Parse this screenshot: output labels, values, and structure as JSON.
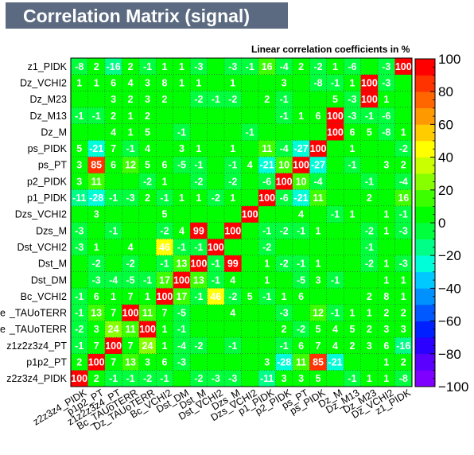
{
  "title": "Correlation Matrix (signal)",
  "subtitle": "Linear correlation coefficients in %",
  "chart_data": {
    "type": "heatmap",
    "title": "Correlation Matrix (signal)",
    "subtitle": "Linear correlation coefficients in %",
    "x_labels": [
      "z2z3z4_PIDK",
      "p1p2_PT",
      "z1z2z3z4_PT",
      "Bc_TAUoTERR",
      "Dz_TAUoTERR",
      "Bc_VCHI2",
      "Dst_DM",
      "Dst_M",
      "Dst_VCHI2",
      "Dzs_M",
      "Dzs_VCHI2",
      "p1_PIDK",
      "p2_PIDK",
      "ps_PT",
      "ps_PIDK",
      "Dz_M",
      "Dz_M13",
      "Dz_M23",
      "Dz_VCHI2",
      "z1_PIDK"
    ],
    "x_labels_visible": [
      "z2z3z4_PIDK",
      "p1p2_PT",
      "z1z2z3z4_PT",
      "Bc_TAUoTERR",
      "Dz_TAUoTERR",
      "Bc_VCHI2",
      "Dst_DM",
      "Dst_M",
      "Dst_VCHI2",
      "Dzs_M",
      "Dzs_VCHI2",
      "p1_PIDK",
      "p2_PIDK",
      "ps_PT",
      "ps_PIDK",
      "Dz_M",
      "Dz_M13",
      "Dz_M23",
      "Dz_VCHI2",
      "z1_PIDK"
    ],
    "y_labels": [
      "z2z3z4_PIDK",
      "p1p2_PT",
      "z1z2z3z4_PT",
      "Dz_TAUoTERR",
      "Bc_TAUoTERR",
      "Bc_VCHI2",
      "Dst_DM",
      "Dst_M",
      "Dst_VCHI2",
      "Dzs_M",
      "Dzs_VCHI2",
      "p1_PIDK",
      "p2_PIDK",
      "ps_PT",
      "ps_PIDK",
      "Dz_M",
      "Dz_M13",
      "Dz_M23",
      "Dz_VCHI2",
      "z1_PIDK"
    ],
    "y_labels_visible": [
      "z2z3z4_PIDK",
      "p1p2_PT",
      "z1z2z3z4_PT",
      "_TAUoTERR",
      "_TAUoTERR",
      "Bc_VCHI2",
      "Dst_DM",
      "Dst_M",
      "Dst_VCHI2",
      "Dzs_M",
      "Dzs_VCHI2",
      "p1_PIDK",
      "p2_PIDK",
      "ps_PT",
      "ps_PIDK",
      "Dz_M",
      "Dz_M13",
      "Dz_M23",
      "Dz_VCHI2",
      "z1_PIDK"
    ],
    "y_labels_visible_prefix": [
      "",
      "",
      "",
      "e",
      "e",
      "",
      "",
      "",
      "",
      "",
      "",
      "",
      "",
      "",
      "",
      "",
      "",
      "",
      "",
      ""
    ],
    "values": [
      [
        100,
        2,
        -1,
        -1,
        -2,
        -1,
        0,
        -2,
        -3,
        -3,
        0,
        -11,
        3,
        3,
        5,
        0,
        -1,
        1,
        1,
        -8
      ],
      [
        2,
        100,
        7,
        13,
        3,
        6,
        -3,
        0,
        0,
        0,
        0,
        3,
        -28,
        11,
        85,
        -21,
        0,
        0,
        1,
        2
      ],
      [
        -1,
        7,
        100,
        7,
        24,
        1,
        -4,
        -2,
        0,
        -1,
        0,
        0,
        -1,
        6,
        7,
        4,
        2,
        3,
        6,
        -16
      ],
      [
        -2,
        3,
        24,
        11,
        100,
        1,
        -1,
        0,
        0,
        0,
        0,
        0,
        2,
        -2,
        5,
        4,
        5,
        2,
        3,
        3
      ],
      [
        -1,
        13,
        7,
        100,
        11,
        7,
        -5,
        0,
        0,
        4,
        0,
        0,
        -3,
        0,
        12,
        -1,
        1,
        1,
        2,
        2
      ],
      [
        -1,
        6,
        1,
        7,
        1,
        100,
        17,
        -1,
        46,
        -2,
        5,
        -1,
        1,
        6,
        0,
        0,
        0,
        2,
        8,
        1
      ],
      [
        0,
        -3,
        -4,
        -5,
        -1,
        17,
        100,
        13,
        -1,
        4,
        0,
        1,
        0,
        -5,
        3,
        -1,
        0,
        0,
        1,
        1
      ],
      [
        0,
        -2,
        0,
        -2,
        0,
        -1,
        13,
        100,
        -1,
        99,
        0,
        1,
        -2,
        -1,
        1,
        0,
        0,
        -2,
        1,
        -3
      ],
      [
        -3,
        1,
        0,
        4,
        0,
        46,
        -1,
        -1,
        100,
        0,
        0,
        -2,
        0,
        0,
        0,
        0,
        0,
        -1,
        0,
        0
      ],
      [
        -3,
        0,
        -1,
        0,
        0,
        -2,
        4,
        99,
        0,
        100,
        0,
        -1,
        -2,
        -1,
        1,
        0,
        0,
        -2,
        1,
        -3
      ],
      [
        0,
        3,
        0,
        0,
        0,
        5,
        0,
        0,
        0,
        0,
        100,
        0,
        0,
        4,
        0,
        -1,
        1,
        0,
        1,
        -1
      ],
      [
        -11,
        -28,
        -1,
        -3,
        2,
        -1,
        1,
        1,
        -2,
        1,
        0,
        100,
        -6,
        -21,
        11,
        0,
        0,
        2,
        0,
        16
      ],
      [
        3,
        11,
        0,
        0,
        -2,
        1,
        0,
        -2,
        0,
        -2,
        0,
        -6,
        100,
        10,
        -4,
        0,
        0,
        -1,
        0,
        -4
      ],
      [
        3,
        85,
        6,
        12,
        5,
        6,
        -5,
        -1,
        0,
        -1,
        4,
        -21,
        10,
        100,
        -27,
        0,
        -1,
        0,
        3,
        2
      ],
      [
        5,
        -21,
        7,
        -1,
        4,
        0,
        3,
        1,
        0,
        1,
        0,
        11,
        -4,
        -27,
        100,
        0,
        1,
        0,
        0,
        -2
      ],
      [
        0,
        0,
        4,
        1,
        5,
        0,
        -1,
        0,
        0,
        0,
        -1,
        0,
        0,
        0,
        0,
        100,
        6,
        5,
        -8,
        1
      ],
      [
        -1,
        -1,
        2,
        1,
        2,
        0,
        0,
        0,
        0,
        0,
        0,
        0,
        -1,
        1,
        6,
        100,
        -3,
        -1,
        -6,
        0
      ],
      [
        0,
        0,
        3,
        2,
        3,
        2,
        0,
        -2,
        -1,
        -2,
        0,
        2,
        -1,
        0,
        0,
        5,
        -3,
        100,
        1,
        0
      ],
      [
        1,
        1,
        6,
        4,
        3,
        8,
        1,
        1,
        0,
        1,
        0,
        0,
        3,
        0,
        -8,
        -1,
        1,
        100,
        -3,
        0
      ],
      [
        -8,
        2,
        -16,
        2,
        -1,
        1,
        1,
        -3,
        0,
        -3,
        -1,
        16,
        -4,
        2,
        -2,
        1,
        -6,
        0,
        -3,
        100
      ]
    ],
    "zlim": [
      -100,
      100
    ],
    "z_ticks": [
      -100,
      -80,
      -60,
      -40,
      -20,
      0,
      20,
      40,
      60,
      80,
      100
    ],
    "grid": true,
    "colorbar": "right",
    "palette": [
      "#7f00ff",
      "#5a00ff",
      "#2c00ff",
      "#0020ff",
      "#0058ff",
      "#0091ff",
      "#00c9ff",
      "#00ffd8",
      "#00ff87",
      "#00ff3c",
      "#00ff00",
      "#3cff00",
      "#87ff00",
      "#c9ff00",
      "#ffff00",
      "#ffcc00",
      "#ff9900",
      "#ff6600",
      "#ff3300",
      "#ff0000"
    ]
  }
}
